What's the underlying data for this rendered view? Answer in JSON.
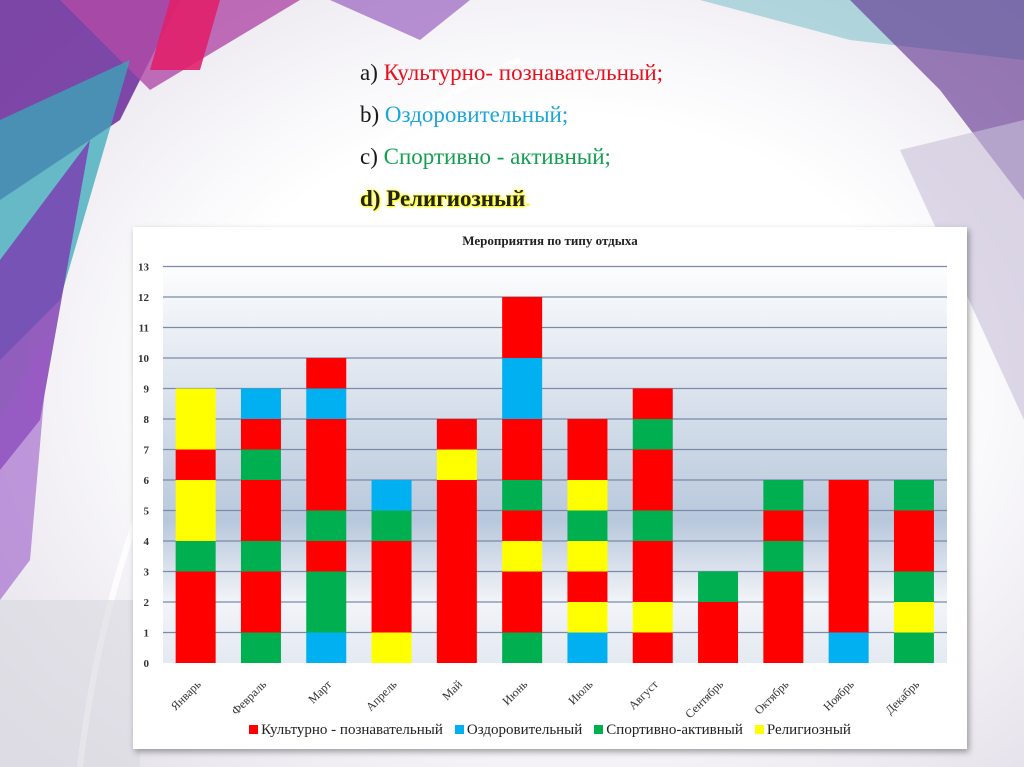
{
  "slide": {
    "items": [
      {
        "marker": "a)",
        "text": "Культурно- познавательный;",
        "color": "#e8101c"
      },
      {
        "marker": "b)",
        "text": "Оздоровительный;",
        "color": "#1aa6d8"
      },
      {
        "marker": "c)",
        "text": "Спортивно - активный;",
        "color": "#12a050"
      },
      {
        "marker": "d)",
        "text": "Религиозный",
        "color": "#222222"
      }
    ],
    "trailing_period": "."
  },
  "chart_data": {
    "type": "bar",
    "stacked": true,
    "title": "Мероприятия по типу отдыха",
    "xlabel": "",
    "ylabel": "",
    "ylim": [
      0,
      13
    ],
    "yticks": [
      "0",
      "1",
      "2",
      "3",
      "4",
      "5",
      "6",
      "7",
      "8",
      "9",
      "10",
      "11",
      "12",
      "13"
    ],
    "grid": true,
    "legend_position": "bottom",
    "categories": [
      "Январь",
      "Февраль",
      "Март",
      "Апрель",
      "Май",
      "Июнь",
      "Июль",
      "Август",
      "Сентябрь",
      "Октябрь",
      "Ноябрь",
      "Декабрь"
    ],
    "series": [
      {
        "key": "R",
        "name": "Культурно - познавательный",
        "color": "#ff0000"
      },
      {
        "key": "B",
        "name": "Оздоровительный",
        "color": "#00b0f0"
      },
      {
        "key": "G",
        "name": "Спортивно-активный",
        "color": "#00b050"
      },
      {
        "key": "Y",
        "name": "Религиозный",
        "color": "#ffff00"
      }
    ],
    "stacks_bottom_to_top": [
      [
        [
          "R",
          3
        ],
        [
          "G",
          1
        ],
        [
          "Y",
          2
        ],
        [
          "R",
          1
        ],
        [
          "Y",
          2
        ]
      ],
      [
        [
          "G",
          1
        ],
        [
          "R",
          2
        ],
        [
          "G",
          1
        ],
        [
          "R",
          2
        ],
        [
          "G",
          1
        ],
        [
          "R",
          1
        ],
        [
          "B",
          1
        ]
      ],
      [
        [
          "B",
          1
        ],
        [
          "G",
          2
        ],
        [
          "R",
          1
        ],
        [
          "G",
          1
        ],
        [
          "R",
          3
        ],
        [
          "B",
          1
        ],
        [
          "R",
          1
        ]
      ],
      [
        [
          "Y",
          1
        ],
        [
          "R",
          3
        ],
        [
          "G",
          1
        ],
        [
          "B",
          1
        ]
      ],
      [
        [
          "R",
          6
        ],
        [
          "Y",
          1
        ],
        [
          "R",
          1
        ]
      ],
      [
        [
          "G",
          1
        ],
        [
          "R",
          2
        ],
        [
          "Y",
          1
        ],
        [
          "R",
          1
        ],
        [
          "G",
          1
        ],
        [
          "R",
          2
        ],
        [
          "B",
          2
        ],
        [
          "R",
          2
        ]
      ],
      [
        [
          "B",
          1
        ],
        [
          "Y",
          1
        ],
        [
          "R",
          1
        ],
        [
          "Y",
          1
        ],
        [
          "G",
          1
        ],
        [
          "Y",
          1
        ],
        [
          "R",
          2
        ]
      ],
      [
        [
          "R",
          1
        ],
        [
          "Y",
          1
        ],
        [
          "R",
          2
        ],
        [
          "G",
          1
        ],
        [
          "R",
          2
        ],
        [
          "G",
          1
        ],
        [
          "R",
          1
        ]
      ],
      [
        [
          "R",
          2
        ],
        [
          "G",
          1
        ]
      ],
      [
        [
          "R",
          3
        ],
        [
          "G",
          1
        ],
        [
          "R",
          1
        ],
        [
          "G",
          1
        ]
      ],
      [
        [
          "B",
          1
        ],
        [
          "R",
          5
        ]
      ],
      [
        [
          "G",
          1
        ],
        [
          "Y",
          1
        ],
        [
          "G",
          1
        ],
        [
          "R",
          2
        ],
        [
          "G",
          1
        ]
      ]
    ],
    "totals": [
      9,
      9,
      10,
      6,
      8,
      12,
      8,
      9,
      3,
      6,
      6,
      6
    ]
  }
}
